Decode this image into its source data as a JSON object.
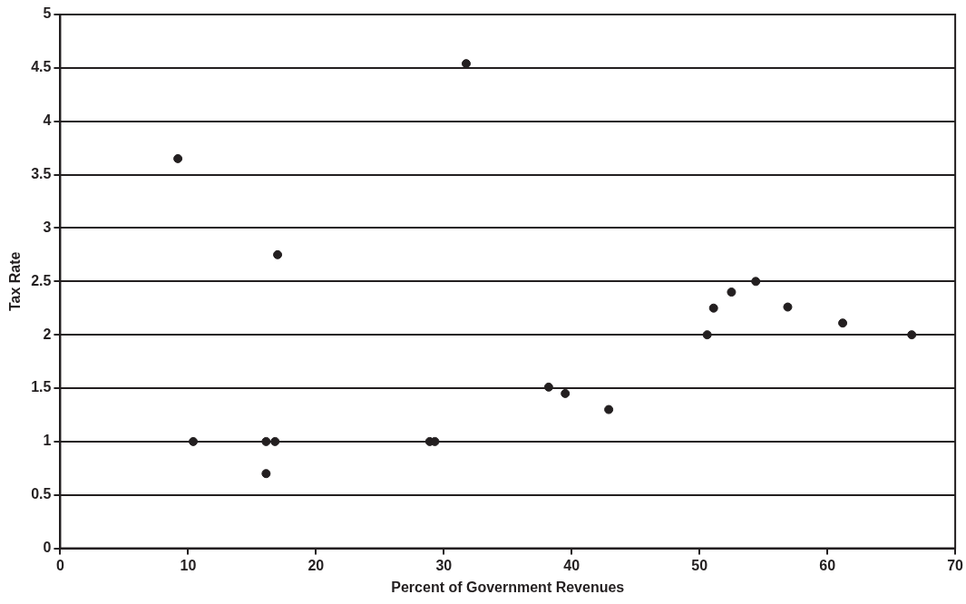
{
  "chart_data": {
    "type": "scatter",
    "xlabel": "Percent of Government Revenues",
    "ylabel": "Tax Rate",
    "x": [
      9.2,
      10.4,
      16.1,
      16.1,
      16.8,
      17.0,
      28.9,
      29.3,
      31.75,
      38.2,
      39.5,
      42.9,
      50.6,
      51.1,
      52.5,
      54.4,
      56.9,
      61.2,
      66.6
    ],
    "series": [
      {
        "color": "#231f20",
        "values": [
          3.65,
          1,
          0.7,
          1,
          1,
          2.75,
          1,
          1,
          4.54,
          1.51,
          1.45,
          1.3,
          2.0,
          2.25,
          2.4,
          2.5,
          2.26,
          2.11,
          2.0
        ]
      }
    ],
    "xlim": [
      0,
      70
    ],
    "xticks": [
      0,
      10,
      20,
      30,
      40,
      50,
      60,
      70
    ],
    "ylim": [
      0,
      5
    ],
    "yticks": [
      0,
      0.5,
      1,
      1.5,
      2,
      2.5,
      3,
      3.5,
      4,
      4.5,
      5
    ],
    "grid": "y",
    "legend": false,
    "marker": "circle"
  }
}
